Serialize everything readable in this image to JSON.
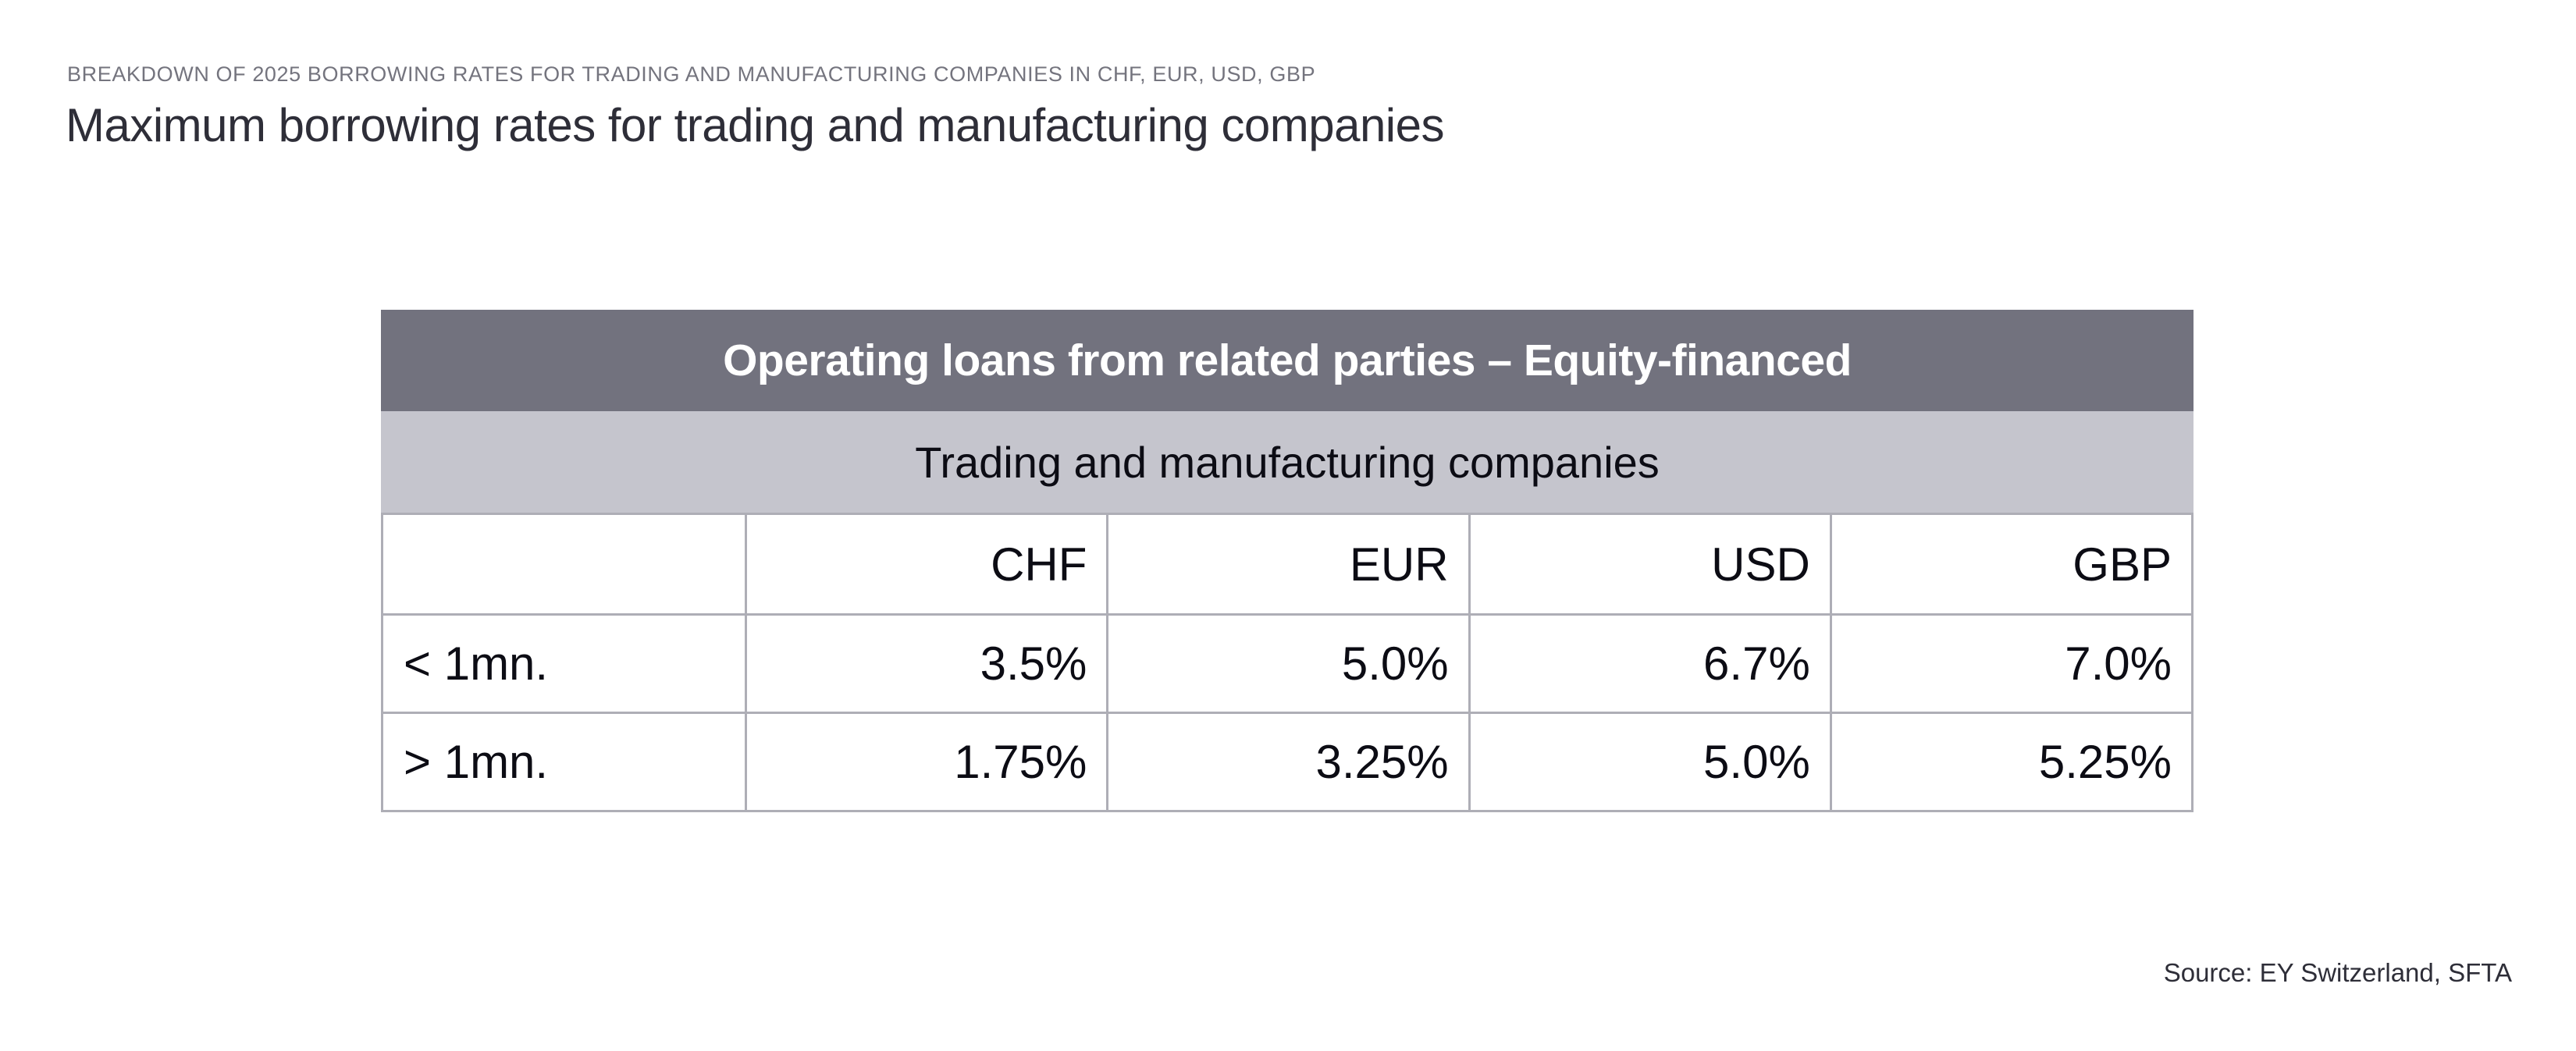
{
  "page": {
    "eyebrow": "BREAKDOWN OF 2025 BORROWING RATES FOR TRADING AND MANUFACTURING COMPANIES IN CHF, EUR, USD, GBP",
    "title": "Maximum borrowing rates for trading and manufacturing companies",
    "source": "Source: EY Switzerland, SFTA"
  },
  "colors": {
    "header_band_bg": "#72727e",
    "subheader_band_bg": "#c5c5cd",
    "grid_border": "#aeaeb6",
    "title_text": "#2e2e38",
    "eyebrow_text": "#74747e",
    "table_text": "#0c0c14",
    "header_band_text": "#ffffff"
  },
  "chart_data": {
    "type": "table",
    "title": "Operating loans from related parties – Equity-financed",
    "subtitle": "Trading and manufacturing companies",
    "columns": [
      "",
      "CHF",
      "EUR",
      "USD",
      "GBP"
    ],
    "rows": [
      {
        "label": "< 1mn.",
        "values": [
          "3.5%",
          "5.0%",
          "6.7%",
          "7.0%"
        ]
      },
      {
        "label": "> 1mn.",
        "values": [
          "1.75%",
          "3.25%",
          "5.0%",
          "5.25%"
        ]
      }
    ]
  }
}
